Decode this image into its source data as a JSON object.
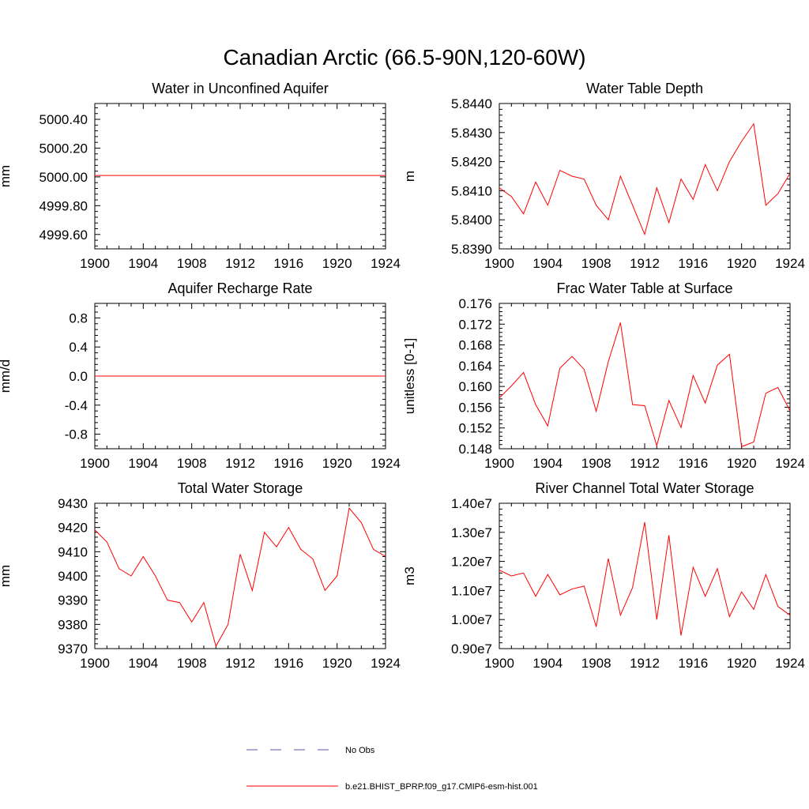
{
  "figure": {
    "title": "Canadian Arctic (66.5-90N,120-60W)"
  },
  "legend": {
    "entries": [
      {
        "label": "No Obs",
        "color": "#5a5aa8",
        "style": "dashed"
      },
      {
        "label": "b.e21.BHIST_BPRP.f09_g17.CMIP6-esm-hist.001",
        "color": "#ff0000",
        "style": "solid"
      }
    ]
  },
  "chart_data": [
    {
      "type": "line",
      "title": "Water in Unconfined Aquifer",
      "xlabel": "",
      "ylabel": "mm",
      "xlim": [
        1900,
        1924
      ],
      "ylim": [
        4999.5,
        5000.51
      ],
      "xticks": [
        "1900",
        "1904",
        "1908",
        "1912",
        "1916",
        "1920",
        "1924"
      ],
      "yticks": [
        {
          "value": 4999.6,
          "label": "4999.60"
        },
        {
          "value": 4999.8,
          "label": "4999.80"
        },
        {
          "value": 5000.0,
          "label": "5000.00"
        },
        {
          "value": 5000.2,
          "label": "5000.20"
        },
        {
          "value": 5000.4,
          "label": "5000.40"
        }
      ],
      "x": [
        1900,
        1901,
        1902,
        1903,
        1904,
        1905,
        1906,
        1907,
        1908,
        1909,
        1910,
        1911,
        1912,
        1913,
        1914,
        1915,
        1916,
        1917,
        1918,
        1919,
        1920,
        1921,
        1922,
        1923,
        1924
      ],
      "values": [
        5000.01,
        5000.01,
        5000.01,
        5000.01,
        5000.01,
        5000.01,
        5000.01,
        5000.01,
        5000.01,
        5000.01,
        5000.01,
        5000.01,
        5000.01,
        5000.01,
        5000.01,
        5000.01,
        5000.01,
        5000.01,
        5000.01,
        5000.01,
        5000.01,
        5000.01,
        5000.01,
        5000.01,
        5000.01
      ],
      "color": "#ff0000"
    },
    {
      "type": "line",
      "title": "Water Table Depth",
      "xlabel": "",
      "ylabel": "m",
      "xlim": [
        1900,
        1924
      ],
      "ylim": [
        5.839,
        5.844
      ],
      "xticks": [
        "1900",
        "1904",
        "1908",
        "1912",
        "1916",
        "1920",
        "1924"
      ],
      "yticks": [
        {
          "value": 5.839,
          "label": "5.8390"
        },
        {
          "value": 5.84,
          "label": "5.8400"
        },
        {
          "value": 5.841,
          "label": "5.8410"
        },
        {
          "value": 5.842,
          "label": "5.8420"
        },
        {
          "value": 5.843,
          "label": "5.8430"
        },
        {
          "value": 5.844,
          "label": "5.8440"
        }
      ],
      "x": [
        1900,
        1901,
        1902,
        1903,
        1904,
        1905,
        1906,
        1907,
        1908,
        1909,
        1910,
        1911,
        1912,
        1913,
        1914,
        1915,
        1916,
        1917,
        1918,
        1919,
        1920,
        1921,
        1922,
        1923,
        1924
      ],
      "values": [
        5.8411,
        5.8408,
        5.8402,
        5.8413,
        5.8405,
        5.8417,
        5.8415,
        5.8414,
        5.8405,
        5.84,
        5.8415,
        5.8405,
        5.8395,
        5.8411,
        5.8399,
        5.8414,
        5.8407,
        5.8419,
        5.841,
        5.842,
        5.8427,
        5.8433,
        5.8405,
        5.8409,
        5.8416
      ],
      "color": "#ff0000"
    },
    {
      "type": "line",
      "title": "Aquifer Recharge Rate",
      "xlabel": "",
      "ylabel": "mm/d",
      "xlim": [
        1900,
        1924
      ],
      "ylim": [
        -1.0,
        1.0
      ],
      "xticks": [
        "1900",
        "1904",
        "1908",
        "1912",
        "1916",
        "1920",
        "1924"
      ],
      "yticks": [
        {
          "value": -0.8,
          "label": "-0.8"
        },
        {
          "value": -0.4,
          "label": "-0.4"
        },
        {
          "value": 0.0,
          "label": "0.0"
        },
        {
          "value": 0.4,
          "label": "0.4"
        },
        {
          "value": 0.8,
          "label": "0.8"
        }
      ],
      "x": [
        1900,
        1901,
        1902,
        1903,
        1904,
        1905,
        1906,
        1907,
        1908,
        1909,
        1910,
        1911,
        1912,
        1913,
        1914,
        1915,
        1916,
        1917,
        1918,
        1919,
        1920,
        1921,
        1922,
        1923,
        1924
      ],
      "values": [
        0,
        0,
        0,
        0,
        0,
        0,
        0,
        0,
        0,
        0,
        0,
        0,
        0,
        0,
        0,
        0,
        0,
        0,
        0,
        0,
        0,
        0,
        0,
        0,
        0
      ],
      "color": "#ff0000"
    },
    {
      "type": "line",
      "title": "Frac Water Table at Surface",
      "xlabel": "",
      "ylabel": "unitless [0-1]",
      "xlim": [
        1900,
        1924
      ],
      "ylim": [
        0.148,
        0.176
      ],
      "xticks": [
        "1900",
        "1904",
        "1908",
        "1912",
        "1916",
        "1920",
        "1924"
      ],
      "yticks": [
        {
          "value": 0.148,
          "label": "0.148"
        },
        {
          "value": 0.152,
          "label": "0.152"
        },
        {
          "value": 0.156,
          "label": "0.156"
        },
        {
          "value": 0.16,
          "label": "0.160"
        },
        {
          "value": 0.164,
          "label": "0.164"
        },
        {
          "value": 0.168,
          "label": "0.168"
        },
        {
          "value": 0.172,
          "label": "0.172"
        },
        {
          "value": 0.176,
          "label": "0.176"
        }
      ],
      "x": [
        1900,
        1901,
        1902,
        1903,
        1904,
        1905,
        1906,
        1907,
        1908,
        1909,
        1910,
        1911,
        1912,
        1913,
        1914,
        1915,
        1916,
        1917,
        1918,
        1919,
        1920,
        1921,
        1922,
        1923,
        1924
      ],
      "values": [
        0.1578,
        0.1601,
        0.1627,
        0.1565,
        0.1524,
        0.1635,
        0.1658,
        0.1633,
        0.1552,
        0.1648,
        0.1723,
        0.1565,
        0.1563,
        0.1486,
        0.1573,
        0.1521,
        0.1621,
        0.1568,
        0.1641,
        0.1662,
        0.1484,
        0.1493,
        0.1587,
        0.1598,
        0.1553
      ],
      "color": "#ff0000"
    },
    {
      "type": "line",
      "title": "Total Water Storage",
      "xlabel": "",
      "ylabel": "mm",
      "xlim": [
        1900,
        1924
      ],
      "ylim": [
        9370,
        9430
      ],
      "xticks": [
        "1900",
        "1904",
        "1908",
        "1912",
        "1916",
        "1920",
        "1924"
      ],
      "yticks": [
        {
          "value": 9370,
          "label": "9370"
        },
        {
          "value": 9380,
          "label": "9380"
        },
        {
          "value": 9390,
          "label": "9390"
        },
        {
          "value": 9400,
          "label": "9400"
        },
        {
          "value": 9410,
          "label": "9410"
        },
        {
          "value": 9420,
          "label": "9420"
        },
        {
          "value": 9430,
          "label": "9430"
        }
      ],
      "x": [
        1900,
        1901,
        1902,
        1903,
        1904,
        1905,
        1906,
        1907,
        1908,
        1909,
        1910,
        1911,
        1912,
        1913,
        1914,
        1915,
        1916,
        1917,
        1918,
        1919,
        1920,
        1921,
        1922,
        1923,
        1924
      ],
      "values": [
        9419,
        9414,
        9403,
        9400,
        9408,
        9400,
        9390,
        9389,
        9381,
        9389,
        9371,
        9380,
        9409,
        9394,
        9418,
        9412,
        9420,
        9411,
        9407,
        9394,
        9400,
        9428,
        9422,
        9411,
        9408
      ],
      "color": "#ff0000"
    },
    {
      "type": "line",
      "title": "River Channel Total Water Storage",
      "xlabel": "",
      "ylabel": "m3",
      "xlim": [
        1900,
        1924
      ],
      "ylim": [
        9000000,
        14000000
      ],
      "xticks": [
        "1900",
        "1904",
        "1908",
        "1912",
        "1916",
        "1920",
        "1924"
      ],
      "yticks": [
        {
          "value": 9000000,
          "label": "0.90e7"
        },
        {
          "value": 10000000,
          "label": "1.00e7"
        },
        {
          "value": 11000000,
          "label": "1.10e7"
        },
        {
          "value": 12000000,
          "label": "1.20e7"
        },
        {
          "value": 13000000,
          "label": "1.30e7"
        },
        {
          "value": 14000000,
          "label": "1.40e7"
        }
      ],
      "x": [
        1900,
        1901,
        1902,
        1903,
        1904,
        1905,
        1906,
        1907,
        1908,
        1909,
        1910,
        1911,
        1912,
        1913,
        1914,
        1915,
        1916,
        1917,
        1918,
        1919,
        1920,
        1921,
        1922,
        1923,
        1924
      ],
      "values": [
        11700000,
        11500000,
        11600000,
        10800000,
        11550000,
        10850000,
        11050000,
        11150000,
        9750000,
        12100000,
        10150000,
        11100000,
        13350000,
        10000000,
        12900000,
        9450000,
        11800000,
        10800000,
        11750000,
        10100000,
        10950000,
        10350000,
        11550000,
        10450000,
        10150000
      ],
      "color": "#ff0000"
    }
  ]
}
